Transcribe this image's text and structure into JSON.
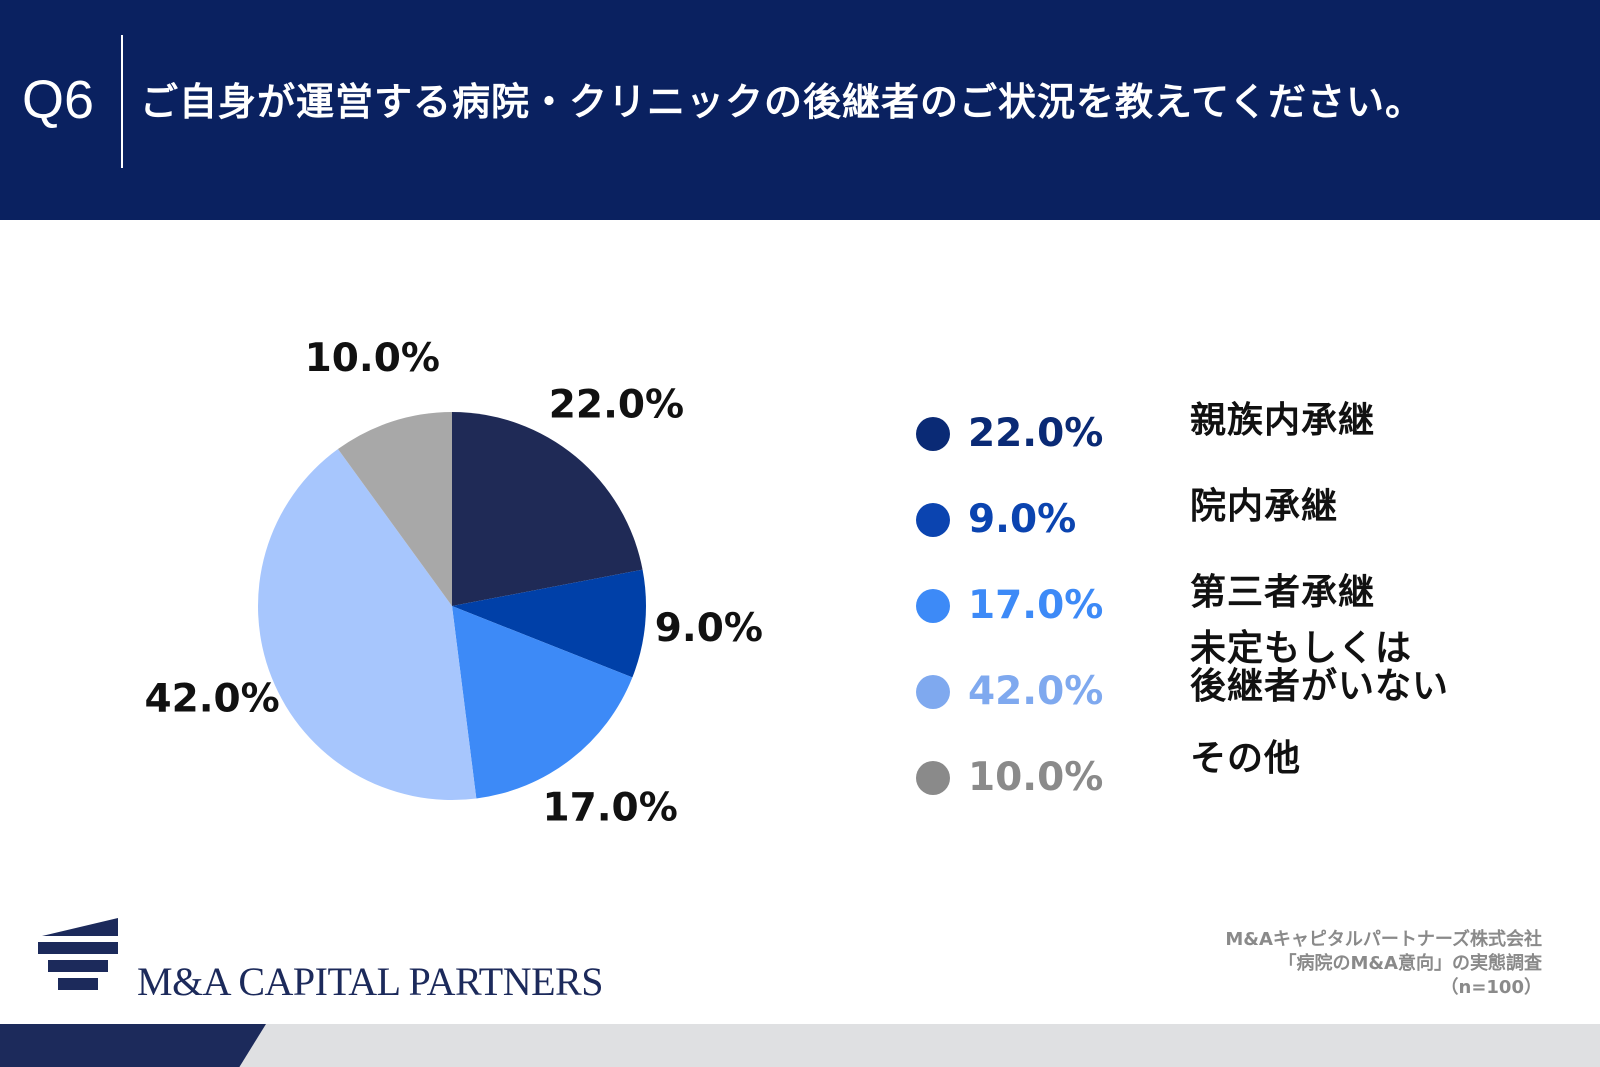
{
  "header": {
    "q_label": "Q6",
    "title": "ご自身が運営する病院・クリニックの後継者のご状況を教えてください。"
  },
  "chart_data": {
    "type": "pie",
    "title": "ご自身が運営する病院・クリニックの後継者のご状況を教えてください。",
    "categories": [
      "親族内承継",
      "院内承継",
      "第三者承継",
      "未定もしくは\n後継者がいない",
      "その他"
    ],
    "values": [
      22.0,
      9.0,
      17.0,
      42.0,
      10.0
    ],
    "labels": [
      "22.0%",
      "9.0%",
      "17.0%",
      "42.0%",
      "10.0%"
    ],
    "slice_colors": [
      "#1f2a56",
      "#0040a8",
      "#3d8af7",
      "#a7c6fd",
      "#a8a8a8"
    ],
    "legend_colors": [
      "#0a2a75",
      "#0b44b0",
      "#3d8af7",
      "#7fa9ef",
      "#8a8a8a"
    ],
    "start_angle": "12 o'clock",
    "direction": "clockwise",
    "legend_position": "right"
  },
  "footer": {
    "logo_text": "M&A CAPITAL PARTNERS",
    "source_lines": [
      "M&Aキャピタルパートナーズ株式会社",
      "「病院のM&A意向」の実態調査",
      "（n=100）"
    ]
  }
}
